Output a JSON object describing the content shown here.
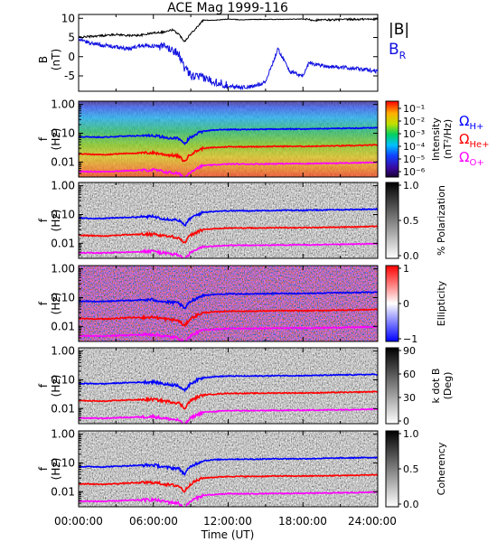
{
  "figure": {
    "title": "ACE Mag 1999-116",
    "x_tick_labels": [
      "00:00:00",
      "06:00:00",
      "12:00:00",
      "18:00:00",
      "24:00:00"
    ],
    "x_label": "Time (UT)"
  },
  "legend": {
    "b_total": "|B|",
    "b_r": "B",
    "b_r_sub": "R",
    "cyclotron_prefix": "Ω",
    "h_sub": "H+",
    "he_sub": "He+",
    "o_sub": "O+"
  },
  "panels": {
    "b": {
      "y_label": "B",
      "y_unit": "(nT)",
      "ticks": [
        "10",
        "5",
        "0",
        "-5"
      ]
    },
    "freq_axis": {
      "y_label": "f",
      "y_unit": "(Hz)",
      "ticks": [
        "1.00",
        "0.10",
        "0.01"
      ]
    },
    "intensity": {
      "bar_label": "Intensity",
      "bar_unit": "(nT²/Hz)",
      "bar_ticks": [
        "10⁻¹",
        "10⁻²",
        "10⁻³",
        "10⁻⁴",
        "10⁻⁵",
        "10⁻⁶"
      ]
    },
    "polarization": {
      "bar_label": "% Polarization",
      "bar_ticks": [
        "1.0",
        "0.5",
        "0.0"
      ]
    },
    "ellipticity": {
      "bar_label": "Ellipticity",
      "bar_ticks": [
        "1",
        "0",
        "−1"
      ]
    },
    "kdotb": {
      "bar_label": "k dot B",
      "bar_unit": "(Deg)",
      "bar_ticks": [
        "90",
        "60",
        "30",
        "0"
      ]
    },
    "coherency": {
      "bar_label": "Coherency",
      "bar_ticks": [
        "1.0",
        "0.5",
        "0.0"
      ]
    }
  },
  "colors": {
    "b_total": "#000000",
    "b_r": "#1010e0",
    "h_plus": "#0000ff",
    "he_plus": "#ff0000",
    "o_plus": "#ff00ff"
  },
  "chart_data": [
    {
      "type": "line",
      "title": "ACE Mag 1999-116",
      "xlabel": "Time (UT)",
      "ylabel": "B (nT)",
      "xlim": [
        0,
        24
      ],
      "ylim": [
        -9,
        11
      ],
      "series": [
        {
          "name": "|B|",
          "x": [
            0,
            1,
            2,
            3,
            4,
            5,
            6,
            7,
            7.5,
            8,
            8.5,
            9,
            10,
            11,
            12,
            13,
            14,
            16,
            18,
            19,
            20,
            22,
            24
          ],
          "y": [
            5,
            5.3,
            5.5,
            5.8,
            5.5,
            5.6,
            6.2,
            6.5,
            7,
            6,
            4,
            6,
            9.5,
            9.5,
            9.8,
            9.6,
            9.7,
            9.7,
            9.8,
            9.5,
            9.6,
            9.7,
            9.8
          ]
        },
        {
          "name": "B_R",
          "x": [
            0,
            1,
            2,
            3,
            4,
            5,
            6,
            7,
            8,
            8.5,
            9,
            10,
            11,
            12,
            13,
            14,
            15,
            16,
            17,
            18,
            18.5,
            19,
            20,
            22,
            24
          ],
          "y": [
            4.5,
            3.5,
            3,
            2.5,
            2,
            3,
            2.8,
            2.5,
            1,
            -3,
            -5,
            -5.5,
            -6.5,
            -7.5,
            -8,
            -7.8,
            -6.5,
            2,
            -4,
            -5,
            -1.5,
            -2,
            -2.5,
            -3,
            -3.8
          ]
        }
      ]
    },
    {
      "type": "line",
      "xlabel": "Time (UT)",
      "ylabel": "f (Hz)",
      "yscale": "log",
      "xlim": [
        0,
        24
      ],
      "ylim": [
        0.003,
        1.3
      ],
      "series": [
        {
          "name": "ΩH+",
          "x": [
            0,
            2,
            4,
            6,
            7,
            8,
            8.5,
            9,
            10,
            11,
            12,
            14,
            16,
            18,
            20,
            22,
            24
          ],
          "y": [
            0.075,
            0.073,
            0.08,
            0.085,
            0.07,
            0.065,
            0.04,
            0.075,
            0.12,
            0.13,
            0.135,
            0.135,
            0.14,
            0.14,
            0.145,
            0.15,
            0.155
          ]
        },
        {
          "name": "ΩHe+",
          "x": [
            0,
            2,
            4,
            6,
            7,
            8,
            8.5,
            9,
            10,
            11,
            12,
            14,
            16,
            18,
            20,
            22,
            24
          ],
          "y": [
            0.019,
            0.018,
            0.02,
            0.021,
            0.018,
            0.016,
            0.01,
            0.019,
            0.03,
            0.032,
            0.034,
            0.034,
            0.035,
            0.035,
            0.036,
            0.037,
            0.039
          ]
        },
        {
          "name": "ΩO+",
          "x": [
            0,
            2,
            4,
            6,
            7,
            8,
            8.5,
            9,
            10,
            11,
            12,
            14,
            16,
            18,
            20,
            22,
            24
          ],
          "y": [
            0.0047,
            0.0046,
            0.005,
            0.0053,
            0.0045,
            0.004,
            0.0026,
            0.0047,
            0.0075,
            0.008,
            0.0085,
            0.0085,
            0.0087,
            0.0088,
            0.009,
            0.0093,
            0.0097
          ]
        }
      ]
    }
  ]
}
